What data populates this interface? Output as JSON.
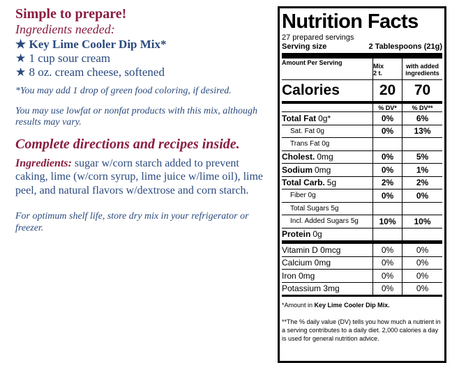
{
  "left": {
    "heading": "Simple to prepare!",
    "needed_heading": "Ingredients needed:",
    "needed": [
      "★ Key Lime Cooler Dip Mix*",
      "★ 1 cup sour cream",
      "★ 8 oz. cream cheese, softened"
    ],
    "note_coloring": "*You may add 1 drop of green food coloring, if desired.",
    "note_lowfat": "You may use lowfat or nonfat products with this mix, although results may vary.",
    "directions": "Complete directions and recipes inside.",
    "ingredients_label": "Ingredients:",
    "ingredients_text": "sugar w/corn starch added to prevent caking, lime (w/corn syrup, lime juice w/lime oil), lime peel, and natural flavors w/dextrose and corn starch.",
    "storage": "For optimum shelf life, store dry mix in your refrigerator or freezer."
  },
  "panel": {
    "title": "Nutrition Facts",
    "servings": "27 prepared servings",
    "serving_size_label": "Serving size",
    "serving_size": "2 Tablespoons (21g)",
    "amount_per_serving": "Amount Per Serving",
    "col_mix": "Mix",
    "col_mix_amount": "2 t.",
    "col_added": "with added ingredients",
    "calories_label": "Calories",
    "calories_mix": "20",
    "calories_added": "70",
    "dv_mix": "% DV*",
    "dv_added": "% DV**",
    "rows": [
      {
        "name": "Total Fat",
        "amount": "0g*",
        "mix": "0%",
        "added": "6%"
      },
      {
        "name": "Sat. Fat 0g",
        "mix": "0%",
        "added": "13%"
      },
      {
        "name": "Trans Fat 0g"
      },
      {
        "name": "Cholest.",
        "amount": "0mg",
        "mix": "0%",
        "added": "5%"
      },
      {
        "name": "Sodium",
        "amount": "0mg",
        "mix": "0%",
        "added": "1%"
      },
      {
        "name": "Total Carb.",
        "amount": "5g",
        "mix": "2%",
        "added": "2%"
      },
      {
        "name": "Fiber 0g",
        "mix": "0%",
        "added": "0%"
      },
      {
        "name": "Total Sugars 5g"
      },
      {
        "name": "Incl. Added Sugars 5g",
        "mix": "10%",
        "added": "10%"
      },
      {
        "name": "Protein",
        "amount": "0g"
      },
      {
        "name": "Vitamin D 0mcg",
        "mix": "0%",
        "added": "0%"
      },
      {
        "name": "Calcium 0mg",
        "mix": "0%",
        "added": "0%"
      },
      {
        "name": "Iron 0mg",
        "mix": "0%",
        "added": "0%"
      },
      {
        "name": "Potassium 3mg",
        "mix": "0%",
        "added": "0%"
      }
    ],
    "footnote_1_start": "*Amount in",
    "footnote_1_product": "Key Lime Cooler Dip Mix.",
    "footnote_2": "**The % daily value (DV) tells you how much a nutrient in a serving contributes to a daily diet. 2,000 calories a day is used for general nutrition advice."
  }
}
